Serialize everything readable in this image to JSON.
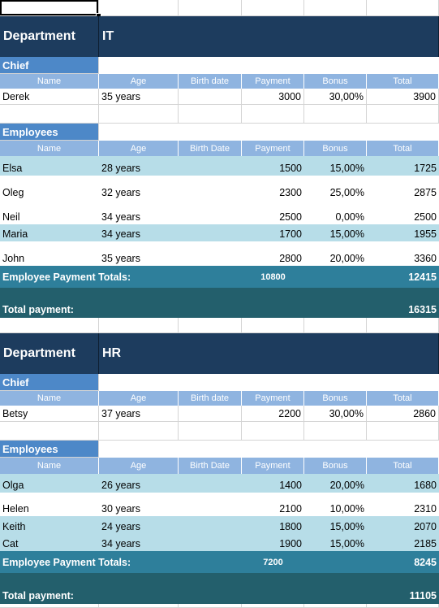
{
  "headers": [
    "Name",
    "Age",
    "Birth date",
    "Payment",
    "Bonus",
    "Total"
  ],
  "emp_headers": [
    "Name",
    "Age",
    "Birth Date",
    "Payment",
    "Bonus",
    "Total"
  ],
  "it": {
    "dept_label": "Department",
    "dept_name": "IT",
    "chief_label": "Chief",
    "chief": {
      "name": "Derek",
      "age": "35 years",
      "birth": "",
      "payment": "3000",
      "bonus": "30,00%",
      "total": "3900"
    },
    "employees_label": "Employees",
    "employees": [
      {
        "name": "Elsa",
        "age": "28 years",
        "birth": "",
        "payment": "1500",
        "bonus": "15,00%",
        "total": "1725"
      },
      {
        "name": "Oleg",
        "age": "32 years",
        "birth": "",
        "payment": "2300",
        "bonus": "25,00%",
        "total": "2875"
      },
      {
        "name": "Neil",
        "age": "34 years",
        "birth": "",
        "payment": "2500",
        "bonus": "0,00%",
        "total": "2500"
      },
      {
        "name": "Maria",
        "age": "34 years",
        "birth": "",
        "payment": "1700",
        "bonus": "15,00%",
        "total": "1955"
      },
      {
        "name": "John",
        "age": "35 years",
        "birth": "",
        "payment": "2800",
        "bonus": "20,00%",
        "total": "3360"
      }
    ],
    "totals_label": "Employee Payment Totals:",
    "payment_total": "10800",
    "employee_total": "12415",
    "grand_label": "Total payment:",
    "grand_total": "16315"
  },
  "hr": {
    "dept_label": "Department",
    "dept_name": "HR",
    "chief_label": "Chief",
    "chief": {
      "name": "Betsy",
      "age": "37 years",
      "birth": "",
      "payment": "2200",
      "bonus": "30,00%",
      "total": "2860"
    },
    "employees_label": "Employees",
    "employees": [
      {
        "name": "Olga",
        "age": "26 years",
        "birth": "",
        "payment": "1400",
        "bonus": "20,00%",
        "total": "1680"
      },
      {
        "name": "Helen",
        "age": "30 years",
        "birth": "",
        "payment": "2100",
        "bonus": "10,00%",
        "total": "2310"
      },
      {
        "name": "Keith",
        "age": "24 years",
        "birth": "",
        "payment": "1800",
        "bonus": "15,00%",
        "total": "2070"
      },
      {
        "name": "Cat",
        "age": "34 years",
        "birth": "",
        "payment": "1900",
        "bonus": "15,00%",
        "total": "2185"
      }
    ],
    "totals_label": "Employee Payment Totals:",
    "payment_total": "7200",
    "employee_total": "8245",
    "grand_label": "Total payment:",
    "grand_total": "11105"
  }
}
